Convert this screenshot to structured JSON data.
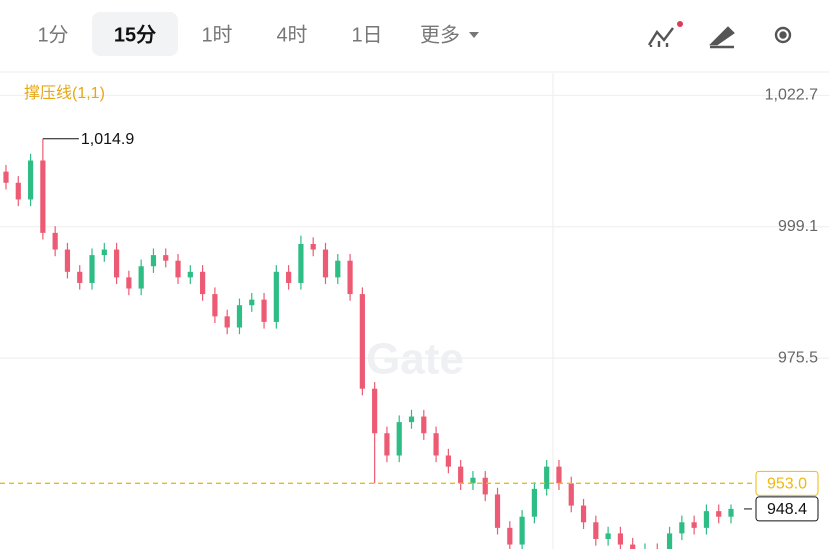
{
  "toolbar": {
    "tabs": [
      "1分",
      "15分",
      "1时",
      "4时",
      "1日",
      "更多"
    ],
    "selected": 1
  },
  "chart_data": {
    "type": "candlestick",
    "indicator": "撑压线(1,1)",
    "watermark": "Gate",
    "up_color": "#2ebd85",
    "down_color": "#ec5b73",
    "open": [
      1009,
      1007,
      1004,
      1011,
      998,
      995,
      991,
      989,
      994,
      995,
      990,
      988,
      992,
      994,
      993,
      990,
      991,
      987,
      983,
      981,
      985,
      986,
      982,
      991,
      989,
      996,
      995,
      990,
      993,
      987,
      970,
      962,
      958,
      964,
      965,
      962,
      958,
      956,
      953,
      954,
      951,
      945,
      942,
      947,
      952,
      956,
      953,
      949,
      946,
      943,
      944,
      942,
      940,
      941,
      940,
      944,
      946,
      945,
      948,
      947
    ],
    "high": [
      1010.2,
      1008.2,
      1012.2,
      1014.9,
      999.2,
      996.2,
      992.2,
      995.2,
      996.2,
      996.2,
      991.2,
      993.2,
      995.2,
      995.2,
      994.2,
      992.2,
      992.2,
      988.2,
      984.2,
      986.2,
      987.2,
      987.2,
      992.2,
      992.2,
      997.5,
      997.2,
      996.2,
      994.2,
      994.2,
      988.2,
      971.2,
      963.2,
      965.2,
      966.2,
      966.2,
      963.2,
      959.2,
      957.2,
      955.2,
      955.2,
      952.2,
      946.2,
      948.2,
      953.2,
      957.2,
      957.2,
      954.2,
      950.2,
      947.2,
      945.2,
      945.2,
      943.2,
      942.2,
      942.2,
      945.2,
      947.2,
      947.2,
      949.2,
      949.2,
      949.2
    ],
    "low": [
      1005.8,
      1002.8,
      1002.8,
      996.8,
      993.8,
      989.8,
      987.8,
      987.8,
      992.8,
      988.8,
      986.8,
      986.8,
      990.8,
      991.8,
      988.8,
      988.8,
      985.8,
      981.8,
      979.8,
      979.8,
      983.8,
      980.8,
      980.8,
      987.8,
      987.8,
      993.8,
      988.8,
      988.8,
      985.8,
      968.8,
      953.0,
      956.8,
      956.8,
      962.8,
      960.8,
      956.8,
      954.8,
      951.8,
      951.8,
      949.8,
      943.8,
      940.8,
      940.8,
      945.8,
      950.8,
      951.8,
      947.8,
      944.8,
      941.8,
      941.8,
      940.8,
      938.8,
      938.8,
      938.8,
      938.8,
      942.8,
      943.8,
      943.8,
      945.8,
      945.8
    ],
    "close": [
      1007,
      1004,
      1011,
      998,
      995,
      991,
      989,
      994,
      995,
      990,
      988,
      992,
      994,
      993,
      990,
      991,
      987,
      983,
      981,
      985,
      986,
      982,
      991,
      989,
      996,
      995,
      990,
      993,
      987,
      970,
      962,
      958,
      964,
      965,
      962,
      958,
      956,
      953,
      954,
      951,
      945,
      942,
      947,
      952,
      956,
      953,
      949,
      946,
      943,
      944,
      942,
      940,
      941,
      940,
      944,
      946,
      945,
      948,
      947,
      948.4
    ],
    "high_marker": {
      "value": 1014.9,
      "label": "1,014.9"
    },
    "support_line": {
      "value": 953,
      "label": "953.0",
      "color": "#f0b90b"
    },
    "last_price": {
      "value": 948.4,
      "label": "948.4"
    },
    "ylim": [
      941.2,
      1026.9
    ],
    "yticks": [
      {
        "value": 1022.7,
        "label": "1,022.7"
      },
      999.1,
      975.5
    ],
    "grid": true
  }
}
